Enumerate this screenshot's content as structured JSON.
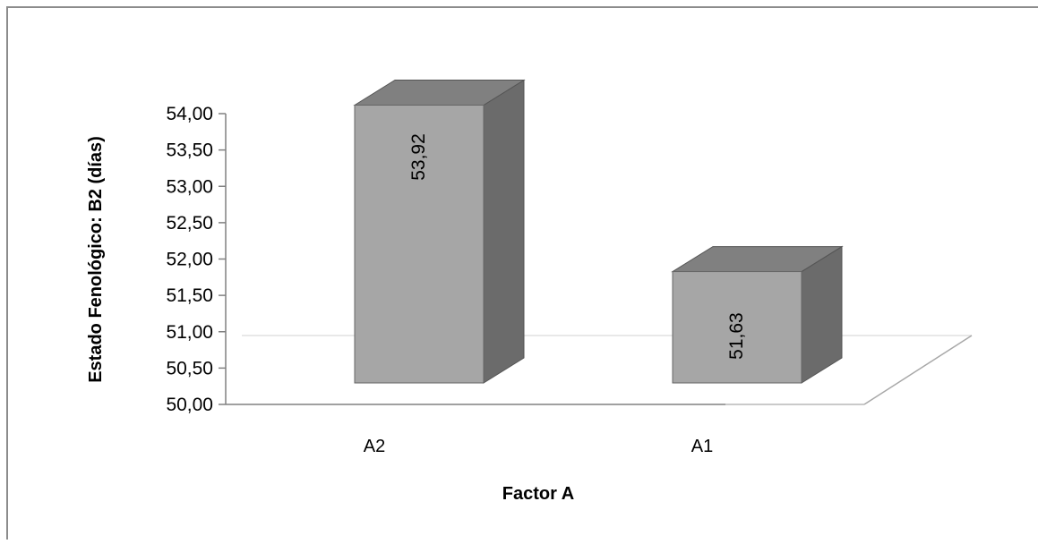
{
  "chart_data": {
    "type": "bar",
    "categories": [
      "A2",
      "A1"
    ],
    "values": [
      53.92,
      51.63
    ],
    "data_labels": [
      "53,92",
      "51,63"
    ],
    "title": "",
    "xlabel": "Factor A",
    "ylabel": "Estado Fenológico: B2 (días)",
    "ylim": [
      50,
      54
    ],
    "yticks": [
      50,
      50.5,
      51,
      51.5,
      52,
      52.5,
      53,
      53.5,
      54
    ],
    "ytick_labels": [
      "50,00",
      "50,50",
      "51,00",
      "51,50",
      "52,00",
      "52,50",
      "53,00",
      "53,50",
      "54,00"
    ],
    "grid": false,
    "legend": "none",
    "style": "3d-column",
    "colors": {
      "bar_front": "#a6a6a6",
      "bar_top": "#808080",
      "bar_side": "#6b6b6b",
      "floor_line": "#b0b0b0",
      "axis": "#808080",
      "border": "#8c8c8c"
    }
  }
}
